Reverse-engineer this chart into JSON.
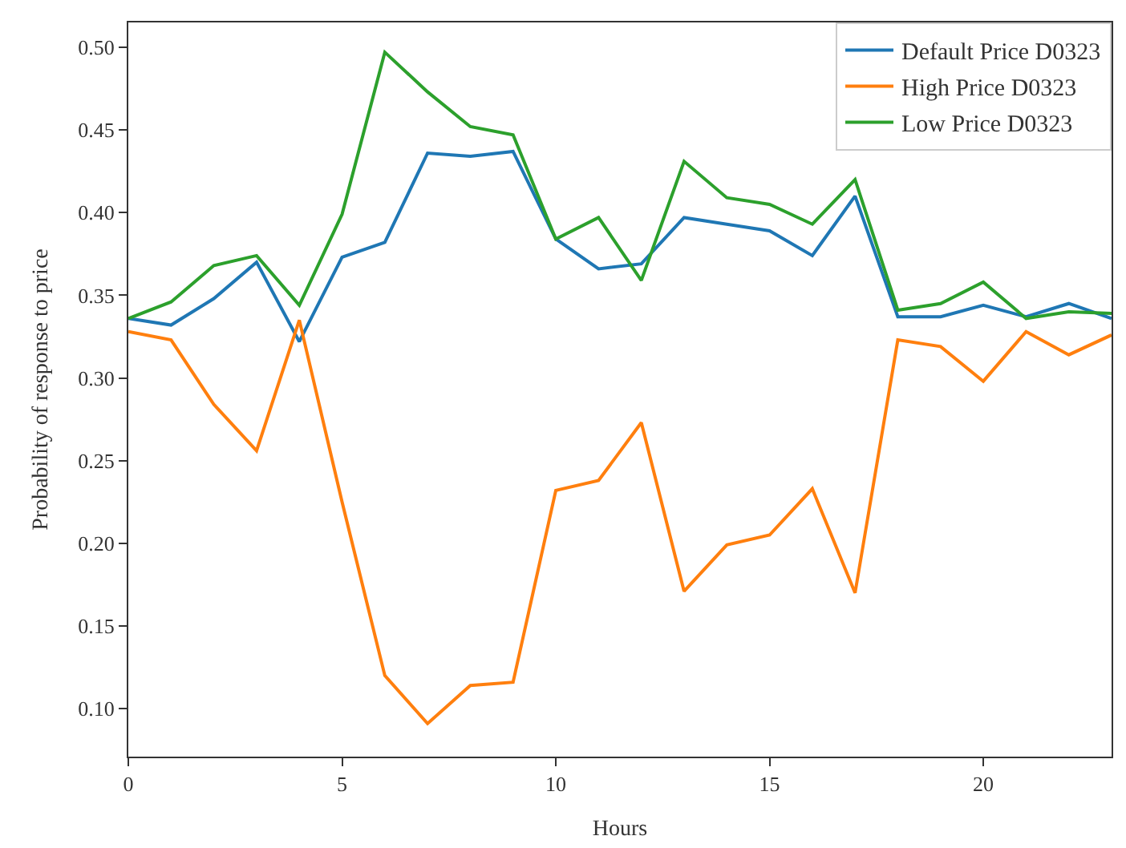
{
  "chart_data": {
    "type": "line",
    "xlabel": "Hours",
    "ylabel": "Probability of response to price",
    "x": [
      0,
      1,
      2,
      3,
      4,
      5,
      6,
      7,
      8,
      9,
      10,
      11,
      12,
      13,
      14,
      15,
      16,
      17,
      18,
      19,
      20,
      21,
      22,
      23
    ],
    "series": [
      {
        "name": "Default Price D0323",
        "color": "#1f77b4",
        "values": [
          0.336,
          0.332,
          0.348,
          0.37,
          0.322,
          0.373,
          0.382,
          0.436,
          0.434,
          0.437,
          0.384,
          0.366,
          0.369,
          0.397,
          0.393,
          0.389,
          0.374,
          0.41,
          0.337,
          0.337,
          0.344,
          0.337,
          0.345,
          0.336
        ]
      },
      {
        "name": "High Price D0323",
        "color": "#ff7f0e",
        "values": [
          0.328,
          0.323,
          0.284,
          0.256,
          0.335,
          0.225,
          0.12,
          0.091,
          0.114,
          0.116,
          0.232,
          0.238,
          0.273,
          0.171,
          0.199,
          0.205,
          0.233,
          0.17,
          0.323,
          0.319,
          0.298,
          0.328,
          0.314,
          0.326
        ]
      },
      {
        "name": "Low Price D0323",
        "color": "#2ca02c",
        "values": [
          0.336,
          0.346,
          0.368,
          0.374,
          0.344,
          0.399,
          0.497,
          0.473,
          0.452,
          0.447,
          0.384,
          0.397,
          0.359,
          0.431,
          0.409,
          0.405,
          0.393,
          0.42,
          0.341,
          0.345,
          0.358,
          0.336,
          0.34,
          0.339
        ]
      }
    ],
    "xlim": [
      0,
      23
    ],
    "xticks": [
      0,
      5,
      10,
      15,
      20
    ],
    "ylim": [
      0.071,
      0.515
    ],
    "yticks": [
      {
        "value": 0.1,
        "label": "0.10"
      },
      {
        "value": 0.15,
        "label": "0.15"
      },
      {
        "value": 0.2,
        "label": "0.20"
      },
      {
        "value": 0.25,
        "label": "0.25"
      },
      {
        "value": 0.3,
        "label": "0.30"
      },
      {
        "value": 0.35,
        "label": "0.35"
      },
      {
        "value": 0.4,
        "label": "0.40"
      },
      {
        "value": 0.45,
        "label": "0.45"
      },
      {
        "value": 0.5,
        "label": "0.50"
      }
    ],
    "legend": "top right"
  }
}
